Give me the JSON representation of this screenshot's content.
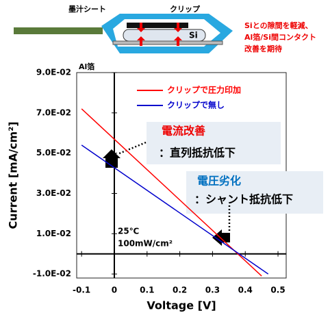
{
  "diagram": {
    "sheet_label": "墨汁シート",
    "clip_label": "クリップ",
    "si_label": "Si",
    "foil_label": "Al箔",
    "note": [
      "Siとの隙間を軽減、",
      "Al箔/Si間コンタクト",
      "改善を期待"
    ]
  },
  "chart_data": {
    "type": "line",
    "x_label": "Voltage [V]",
    "y_label": "Current [mA/cm²]",
    "xlim": [
      -0.115,
      0.525
    ],
    "ylim": [
      -0.012,
      0.09
    ],
    "xticks": [
      -0.1,
      0,
      0.1,
      0.2,
      0.3,
      0.4,
      0.5
    ],
    "yticks": [
      {
        "value": -0.01,
        "label": "-1.0E-02"
      },
      {
        "value": 0.01,
        "label": "1.0E-02"
      },
      {
        "value": 0.03,
        "label": "3.0E-02"
      },
      {
        "value": 0.05,
        "label": "5.0E-02"
      },
      {
        "value": 0.07,
        "label": "7.0E-02"
      },
      {
        "value": 0.09,
        "label": "9.0E-02"
      }
    ],
    "x": [
      -0.1,
      0.45
    ],
    "series": [
      {
        "name": "クリップで圧力印加",
        "color": "#ff0000",
        "values": [
          0.072,
          -0.011
        ]
      },
      {
        "name": "クリップで無し",
        "color": "#0000cc",
        "x": [
          -0.1,
          0.47
        ],
        "values": [
          0.054,
          -0.01
        ]
      }
    ],
    "annotations": [
      {
        "title": "電流改善",
        "text": "：直列抵抗低下"
      },
      {
        "title": "電圧劣化",
        "text": "：シャント抵抗低下"
      }
    ],
    "conditions": [
      "25℃",
      "100mW/cm²"
    ]
  }
}
